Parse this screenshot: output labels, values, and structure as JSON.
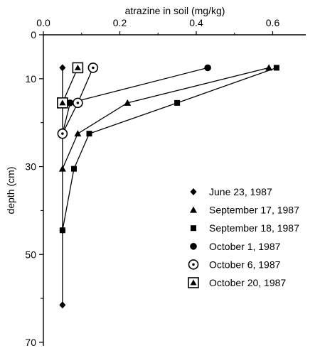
{
  "chart_data": {
    "type": "line",
    "title": "",
    "xlabel": "atrazine in soil (mg/kg)",
    "ylabel": "depth (cm)",
    "xlim": [
      0,
      0.65
    ],
    "ylim": [
      0,
      70
    ],
    "y_inverted": true,
    "x_axis_position": "top",
    "xticks": [
      0,
      0.2,
      0.4,
      0.6
    ],
    "xtick_labels": [
      "0.0",
      "0.2",
      "0.4",
      "0.6"
    ],
    "yticks": [
      0,
      10,
      30,
      50,
      70
    ],
    "ytick_labels": [
      "0",
      "10",
      "30",
      "50",
      "70"
    ],
    "y_minor_ticks": [
      20,
      40,
      60
    ],
    "grid": false,
    "legend_position": "right",
    "series": [
      {
        "name": "June 23, 1987",
        "marker": "diamond-filled",
        "points": [
          {
            "x": 0.05,
            "depth": 7.5
          },
          {
            "x": 0.05,
            "depth": 22.5
          },
          {
            "x": 0.05,
            "depth": 44.5
          },
          {
            "x": 0.05,
            "depth": 61.5
          }
        ]
      },
      {
        "name": "September 17, 1987",
        "marker": "triangle-filled",
        "points": [
          {
            "x": 0.59,
            "depth": 7.5
          },
          {
            "x": 0.22,
            "depth": 15.5
          },
          {
            "x": 0.09,
            "depth": 22.5
          },
          {
            "x": 0.05,
            "depth": 30.5
          }
        ]
      },
      {
        "name": "September 18, 1987",
        "marker": "square-filled",
        "points": [
          {
            "x": 0.61,
            "depth": 7.5
          },
          {
            "x": 0.35,
            "depth": 15.5
          },
          {
            "x": 0.12,
            "depth": 22.5
          },
          {
            "x": 0.08,
            "depth": 30.5
          },
          {
            "x": 0.05,
            "depth": 44.5
          }
        ]
      },
      {
        "name": "October 1, 1987",
        "marker": "circle-filled",
        "points": [
          {
            "x": 0.43,
            "depth": 7.5
          },
          {
            "x": 0.07,
            "depth": 15.5
          },
          {
            "x": 0.05,
            "depth": 22.5
          }
        ]
      },
      {
        "name": "October 6, 1987",
        "marker": "circle-dot",
        "points": [
          {
            "x": 0.13,
            "depth": 7.5
          },
          {
            "x": 0.09,
            "depth": 15.5
          },
          {
            "x": 0.05,
            "depth": 22.5
          }
        ]
      },
      {
        "name": "October 20, 1987",
        "marker": "square-triangle",
        "points": [
          {
            "x": 0.09,
            "depth": 7.5
          },
          {
            "x": 0.05,
            "depth": 15.5
          }
        ]
      }
    ]
  }
}
